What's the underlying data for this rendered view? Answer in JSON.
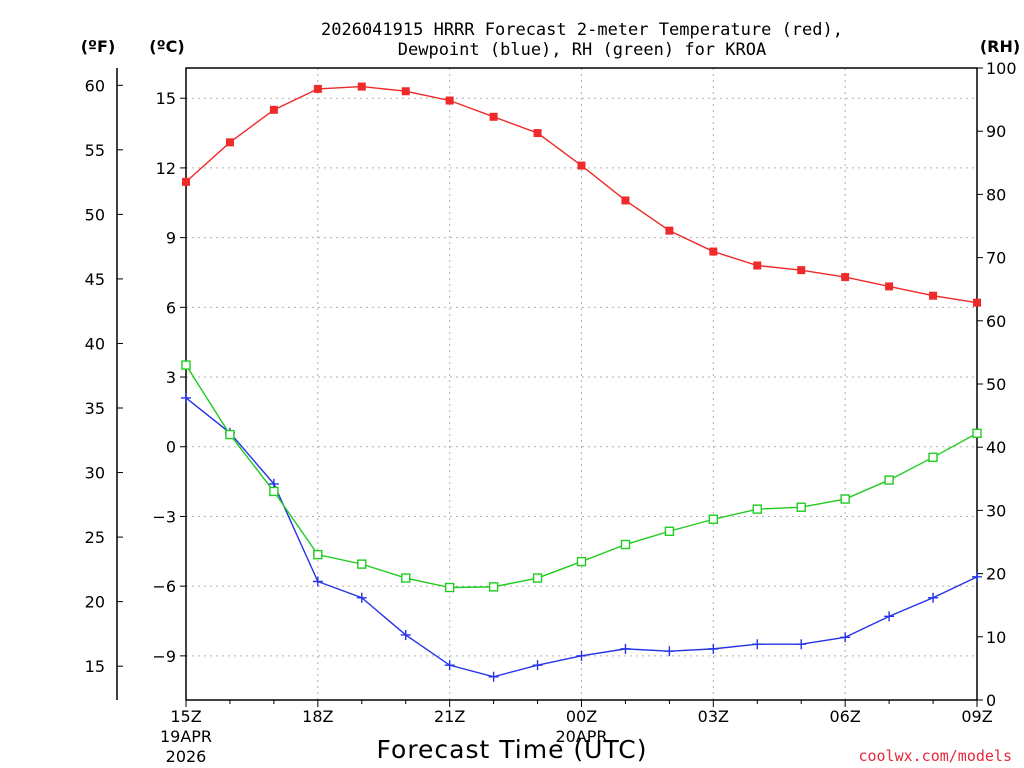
{
  "chart_data": {
    "type": "line",
    "title_line1": "2026041915 HRRR Forecast 2-meter Temperature (red),",
    "title_line2": "Dewpoint (blue), RH (green) for KROA",
    "xlabel": "Forecast Time (UTC)",
    "credit": "coolwx.com/models",
    "units": {
      "fahrenheit": "(ºF)",
      "celsius": "(ºC)",
      "rh": "(RH)"
    },
    "x_hours": [
      0,
      1,
      2,
      3,
      4,
      5,
      6,
      7,
      8,
      9,
      10,
      11,
      12,
      13,
      14,
      15,
      16,
      17,
      18
    ],
    "x_ticks": [
      {
        "hour": 0,
        "label": "15Z",
        "date": "19APR",
        "year": "2026"
      },
      {
        "hour": 3,
        "label": "18Z"
      },
      {
        "hour": 6,
        "label": "21Z"
      },
      {
        "hour": 9,
        "label": "00Z",
        "date": "20APR"
      },
      {
        "hour": 12,
        "label": "03Z"
      },
      {
        "hour": 15,
        "label": "06Z"
      },
      {
        "hour": 18,
        "label": "09Z"
      }
    ],
    "celsius_axis": {
      "range": [
        -10.9,
        16.3
      ],
      "ticks": [
        "15",
        "12",
        "9",
        "6",
        "3",
        "0",
        "−3",
        "−6",
        "−9"
      ],
      "tick_values": [
        15,
        12,
        9,
        6,
        3,
        0,
        -3,
        -6,
        -9
      ]
    },
    "fahrenheit_axis": {
      "ticks": [
        "60",
        "55",
        "50",
        "45",
        "40",
        "35",
        "30",
        "25",
        "20",
        "15"
      ],
      "tick_values": [
        60,
        55,
        50,
        45,
        40,
        35,
        30,
        25,
        20,
        15
      ]
    },
    "rh_axis": {
      "range": [
        0,
        100
      ],
      "ticks": [
        "100",
        "90",
        "80",
        "70",
        "60",
        "50",
        "40",
        "30",
        "20",
        "10",
        "0"
      ],
      "tick_values": [
        100,
        90,
        80,
        70,
        60,
        50,
        40,
        30,
        20,
        10,
        0
      ]
    },
    "series": [
      {
        "name": "Temperature",
        "unit": "C",
        "color": "#ef2a2a",
        "marker": "filled-square",
        "values": [
          11.4,
          13.1,
          14.5,
          15.4,
          15.5,
          15.3,
          14.9,
          14.2,
          13.5,
          12.1,
          10.6,
          9.3,
          8.4,
          7.8,
          7.6,
          7.3,
          6.9,
          6.5,
          6.2
        ]
      },
      {
        "name": "Dewpoint",
        "unit": "C",
        "color": "#2433e8",
        "marker": "plus",
        "values": [
          2.1,
          0.6,
          -1.6,
          -5.8,
          -6.5,
          -8.1,
          -9.4,
          -9.9,
          -9.4,
          -9.0,
          -8.7,
          -8.8,
          -8.7,
          -8.5,
          -8.5,
          -8.2,
          -7.3,
          -6.5,
          -5.6
        ]
      },
      {
        "name": "RH",
        "unit": "%",
        "color": "#1fcc1f",
        "marker": "open-square",
        "values": [
          53,
          42,
          33,
          23,
          21.5,
          19.3,
          17.8,
          17.9,
          19.3,
          21.9,
          24.6,
          26.7,
          28.6,
          30.2,
          30.5,
          31.8,
          34.8,
          38.4,
          42.2
        ]
      }
    ]
  }
}
